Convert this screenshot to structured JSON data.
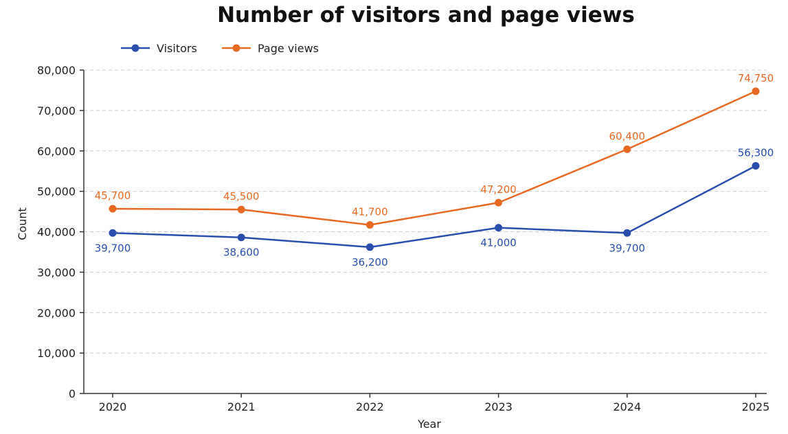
{
  "chart_data": {
    "type": "line",
    "title": "Number of visitors and page views",
    "xlabel": "Year",
    "ylabel": "Count",
    "categories": [
      "2020",
      "2021",
      "2022",
      "2023",
      "2024",
      "2025"
    ],
    "ylim": [
      0,
      80000
    ],
    "yticks": [
      0,
      10000,
      20000,
      30000,
      40000,
      50000,
      60000,
      70000,
      80000
    ],
    "ytick_labels": [
      "0",
      "10,000",
      "20,000",
      "30,000",
      "40,000",
      "50,000",
      "60,000",
      "70,000",
      "80,000"
    ],
    "grid": true,
    "legend_position": "top-left",
    "series": [
      {
        "name": "Visitors",
        "color": "#2a4ead",
        "values": [
          39700,
          38600,
          36200,
          41000,
          39700,
          56300
        ],
        "data_labels": [
          "39,700",
          "38,600",
          "36,200",
          "41,000",
          "39,700",
          "56,300"
        ],
        "label_position": [
          "below",
          "below",
          "below",
          "below",
          "below",
          "above"
        ]
      },
      {
        "name": "Page views",
        "color": "#e66a24",
        "values": [
          45700,
          45500,
          41700,
          47200,
          60400,
          74750
        ],
        "data_labels": [
          "45,700",
          "45,500",
          "41,700",
          "47,200",
          "60,400",
          "74,750"
        ],
        "label_position": [
          "above",
          "above",
          "above",
          "above",
          "above",
          "above"
        ]
      }
    ]
  }
}
